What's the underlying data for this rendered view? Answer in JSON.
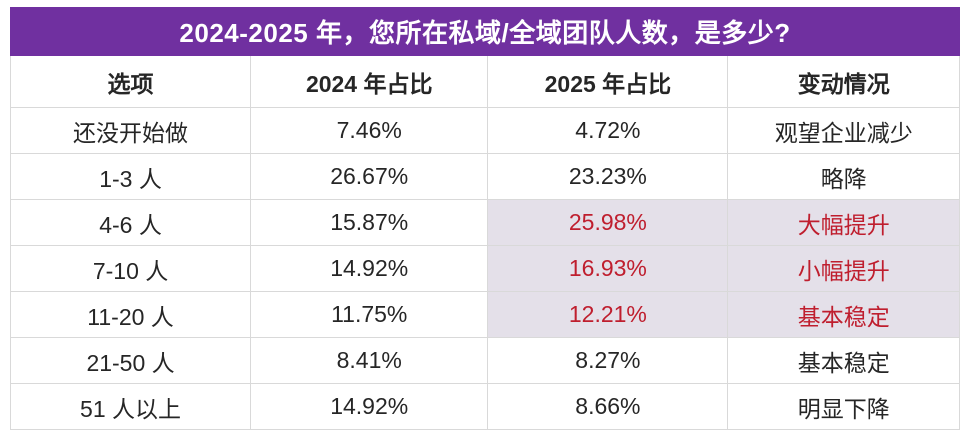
{
  "title": "2024-2025 年，您所在私域/全域团队人数，是多少?",
  "colors": {
    "title_bg": "#7030a0",
    "title_text": "#ffffff",
    "highlight_bg": "#e4e0e9",
    "highlight_text": "#bf1e2e",
    "body_text": "#262626",
    "border": "#d9d9d9"
  },
  "table": {
    "headers": [
      "选项",
      "2024 年占比",
      "2025 年占比",
      "变动情况"
    ],
    "rows": [
      {
        "option": "还没开始做",
        "y2024": "7.46%",
        "y2025": "4.72%",
        "change": "观望企业减少",
        "highlight": false
      },
      {
        "option": "1-3 人",
        "y2024": "26.67%",
        "y2025": "23.23%",
        "change": "略降",
        "highlight": false
      },
      {
        "option": "4-6 人",
        "y2024": "15.87%",
        "y2025": "25.98%",
        "change": "大幅提升",
        "highlight": true
      },
      {
        "option": "7-10 人",
        "y2024": "14.92%",
        "y2025": "16.93%",
        "change": "小幅提升",
        "highlight": true
      },
      {
        "option": "11-20 人",
        "y2024": "11.75%",
        "y2025": "12.21%",
        "change": "基本稳定",
        "highlight": true
      },
      {
        "option": "21-50 人",
        "y2024": "8.41%",
        "y2025": "8.27%",
        "change": "基本稳定",
        "highlight": false
      },
      {
        "option": "51 人以上",
        "y2024": "14.92%",
        "y2025": "8.66%",
        "change": "明显下降",
        "highlight": false
      }
    ]
  },
  "chart_data": {
    "type": "table",
    "title": "2024-2025 年，您所在私域/全域团队人数，是多少?",
    "columns": [
      "选项",
      "2024 年占比",
      "2025 年占比",
      "变动情况"
    ],
    "rows": [
      [
        "还没开始做",
        "7.46%",
        "4.72%",
        "观望企业减少"
      ],
      [
        "1-3 人",
        "26.67%",
        "23.23%",
        "略降"
      ],
      [
        "4-6 人",
        "15.87%",
        "25.98%",
        "大幅提升"
      ],
      [
        "7-10 人",
        "14.92%",
        "16.93%",
        "小幅提升"
      ],
      [
        "11-20 人",
        "11.75%",
        "12.21%",
        "基本稳定"
      ],
      [
        "21-50 人",
        "8.41%",
        "8.27%",
        "基本稳定"
      ],
      [
        "51 人以上",
        "14.92%",
        "8.66%",
        "明显下降"
      ]
    ],
    "series": [
      {
        "name": "2024 年占比",
        "values": [
          7.46,
          26.67,
          15.87,
          14.92,
          11.75,
          8.41,
          14.92
        ]
      },
      {
        "name": "2025 年占比",
        "values": [
          4.72,
          23.23,
          25.98,
          16.93,
          12.21,
          8.27,
          8.66
        ]
      }
    ],
    "categories": [
      "还没开始做",
      "1-3 人",
      "4-6 人",
      "7-10 人",
      "11-20 人",
      "21-50 人",
      "51 人以上"
    ],
    "highlighted_categories": [
      "4-6 人",
      "7-10 人",
      "11-20 人"
    ]
  }
}
